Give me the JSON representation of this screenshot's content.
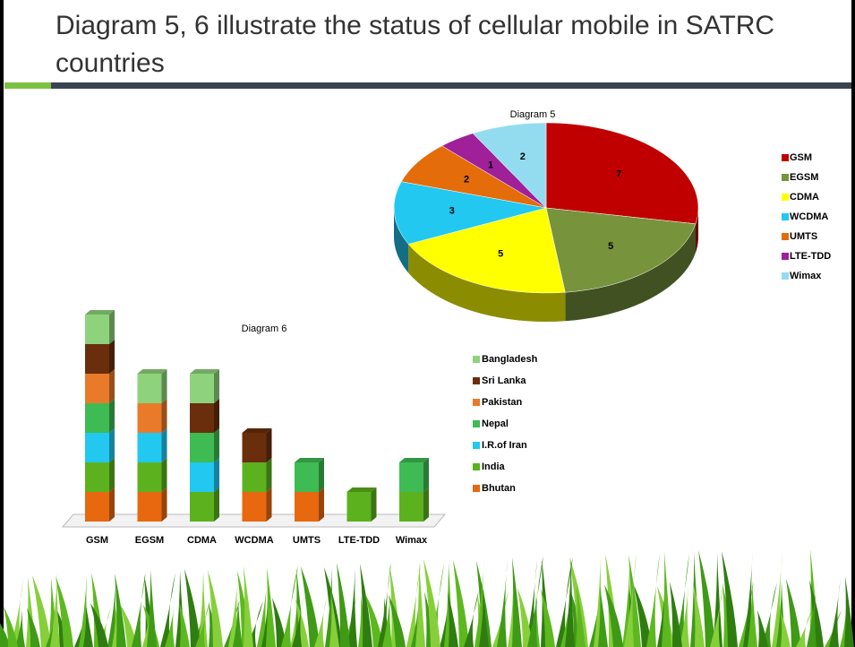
{
  "slide": {
    "title": "Diagram 5, 6 illustrate the status of cellular mobile in SATRC countries"
  },
  "chart_data": [
    {
      "type": "pie",
      "title": "Diagram 5",
      "categories": [
        "GSM",
        "EGSM",
        "CDMA",
        "WCDMA",
        "UMTS",
        "LTE-TDD",
        "Wimax"
      ],
      "values": [
        7,
        5,
        5,
        3,
        2,
        1,
        2
      ],
      "colors": [
        "#c00000",
        "#77933c",
        "#ffff00",
        "#22c8f0",
        "#e46c0a",
        "#a0209a",
        "#93dcf0"
      ],
      "legend": "right"
    },
    {
      "type": "stacked-bar",
      "title": "Diagram 6",
      "categories": [
        "GSM",
        "EGSM",
        "CDMA",
        "WCDMA",
        "UMTS",
        "LTE-TDD",
        "Wimax"
      ],
      "series": [
        {
          "name": "Bhutan",
          "color": "#e8680f",
          "values": [
            1,
            1,
            0,
            1,
            1,
            0,
            0
          ]
        },
        {
          "name": "India",
          "color": "#5cb21e",
          "values": [
            1,
            1,
            1,
            1,
            0,
            1,
            1
          ]
        },
        {
          "name": "I.R.of Iran",
          "color": "#22c8f0",
          "values": [
            1,
            1,
            1,
            0,
            0,
            0,
            0
          ]
        },
        {
          "name": "Nepal",
          "color": "#3ebb52",
          "values": [
            1,
            0,
            1,
            0,
            1,
            0,
            1
          ]
        },
        {
          "name": "Pakistan",
          "color": "#e87a2a",
          "values": [
            1,
            1,
            0,
            0,
            0,
            0,
            0
          ]
        },
        {
          "name": "Sri Lanka",
          "color": "#6a2e0c",
          "values": [
            1,
            0,
            1,
            1,
            0,
            0,
            0
          ]
        },
        {
          "name": "Bangladesh",
          "color": "#8ed37c",
          "values": [
            1,
            1,
            1,
            0,
            0,
            0,
            0
          ]
        }
      ],
      "legend": "right"
    }
  ]
}
